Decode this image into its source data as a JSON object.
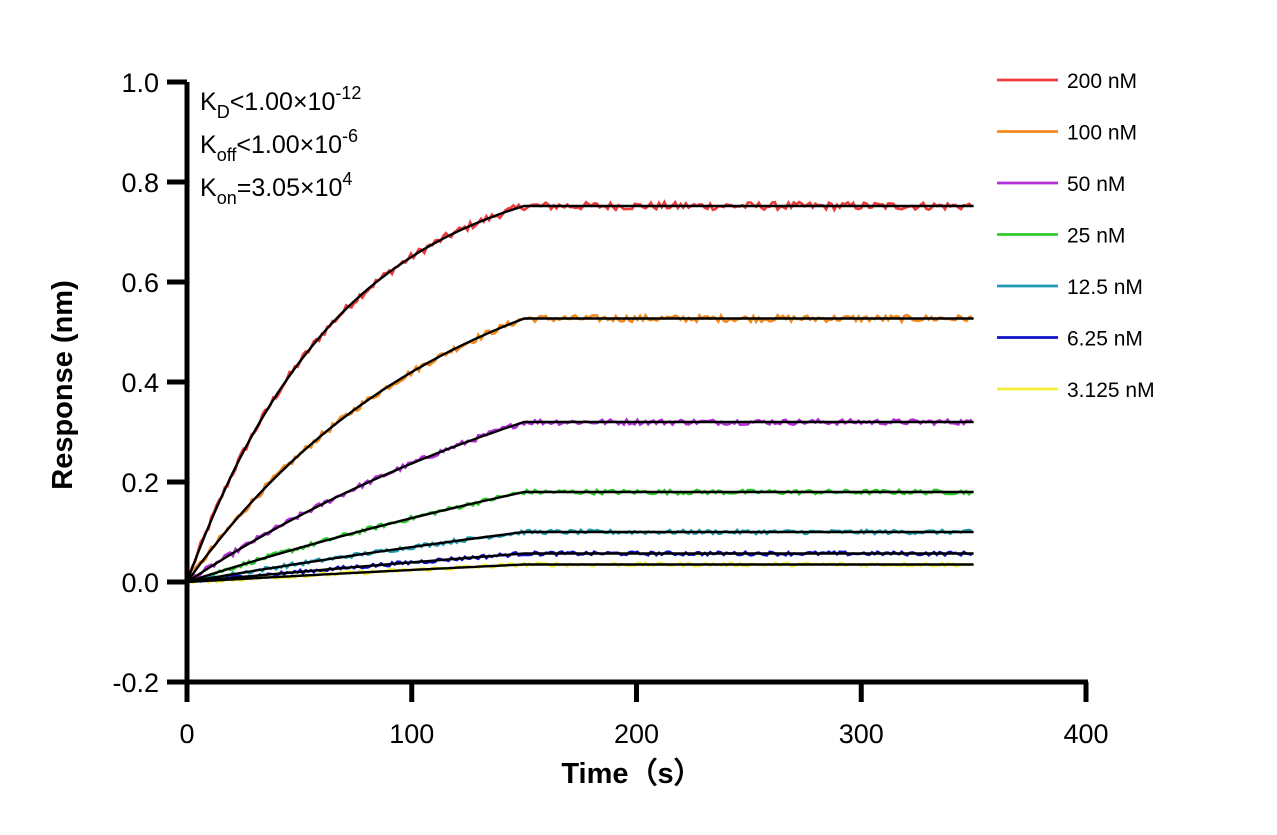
{
  "chart_data": {
    "type": "line",
    "title": "",
    "xlabel": "Time（s）",
    "ylabel": "Response (nm)",
    "xlim": [
      0,
      400
    ],
    "ylim": [
      -0.2,
      1.0
    ],
    "xticks": [
      "0",
      "100",
      "200",
      "300",
      "400"
    ],
    "yticks": [
      "-0.2",
      "0.0",
      "0.2",
      "0.4",
      "0.6",
      "0.8",
      "1.0"
    ],
    "grid": false,
    "legend_position": "right",
    "association_end": 150,
    "time_end": 350,
    "annotations": [
      {
        "base": "K",
        "sub": "D",
        "text": "<1.00×10",
        "sup": "-12"
      },
      {
        "base": "K",
        "sub": "off",
        "text": "<1.00×10",
        "sup": "-6"
      },
      {
        "base": "K",
        "sub": "on",
        "text": "=3.05×10",
        "sup": "4"
      }
    ],
    "fit_color": "#000000",
    "series": [
      {
        "name": "200 nM",
        "color": "#ef3b3b",
        "curvature": 2.2,
        "plateau": 0.752
      },
      {
        "name": "100 nM",
        "color": "#f28a1e",
        "curvature": 1.3,
        "plateau": 0.527
      },
      {
        "name": "50 nM",
        "color": "#b330d9",
        "curvature": 0.7,
        "plateau": 0.32
      },
      {
        "name": "25 nM",
        "color": "#2ecc2e",
        "curvature": 0.4,
        "plateau": 0.18
      },
      {
        "name": "12.5 nM",
        "color": "#1f9bb3",
        "curvature": 0.3,
        "plateau": 0.1
      },
      {
        "name": "6.25 nM",
        "color": "#1010c8",
        "curvature": 0.2,
        "plateau": 0.057
      },
      {
        "name": "3.125 nM",
        "color": "#f5f03a",
        "curvature": 0.2,
        "plateau": 0.035
      }
    ]
  }
}
